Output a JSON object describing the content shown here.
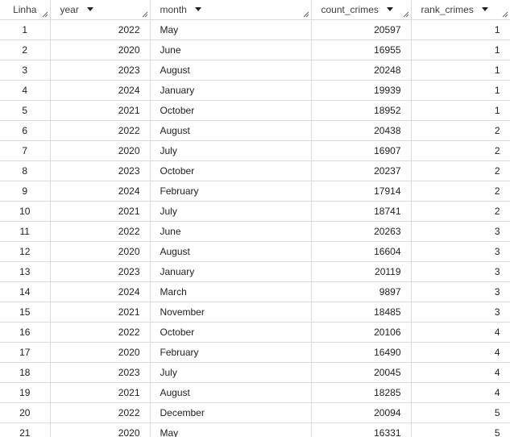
{
  "columns": [
    {
      "key": "linha",
      "label": "Linha",
      "sortable": false
    },
    {
      "key": "year",
      "label": "year",
      "sortable": true
    },
    {
      "key": "month",
      "label": "month",
      "sortable": true
    },
    {
      "key": "count_crimes",
      "label": "count_crimes",
      "sortable": true
    },
    {
      "key": "rank_crimes",
      "label": "rank_crimes",
      "sortable": true
    }
  ],
  "rows": [
    {
      "linha": "1",
      "year": "2022",
      "month": "May",
      "count_crimes": "20597",
      "rank_crimes": "1"
    },
    {
      "linha": "2",
      "year": "2020",
      "month": "June",
      "count_crimes": "16955",
      "rank_crimes": "1"
    },
    {
      "linha": "3",
      "year": "2023",
      "month": "August",
      "count_crimes": "20248",
      "rank_crimes": "1"
    },
    {
      "linha": "4",
      "year": "2024",
      "month": "January",
      "count_crimes": "19939",
      "rank_crimes": "1"
    },
    {
      "linha": "5",
      "year": "2021",
      "month": "October",
      "count_crimes": "18952",
      "rank_crimes": "1"
    },
    {
      "linha": "6",
      "year": "2022",
      "month": "August",
      "count_crimes": "20438",
      "rank_crimes": "2"
    },
    {
      "linha": "7",
      "year": "2020",
      "month": "July",
      "count_crimes": "16907",
      "rank_crimes": "2"
    },
    {
      "linha": "8",
      "year": "2023",
      "month": "October",
      "count_crimes": "20237",
      "rank_crimes": "2"
    },
    {
      "linha": "9",
      "year": "2024",
      "month": "February",
      "count_crimes": "17914",
      "rank_crimes": "2"
    },
    {
      "linha": "10",
      "year": "2021",
      "month": "July",
      "count_crimes": "18741",
      "rank_crimes": "2"
    },
    {
      "linha": "11",
      "year": "2022",
      "month": "June",
      "count_crimes": "20263",
      "rank_crimes": "3"
    },
    {
      "linha": "12",
      "year": "2020",
      "month": "August",
      "count_crimes": "16604",
      "rank_crimes": "3"
    },
    {
      "linha": "13",
      "year": "2023",
      "month": "January",
      "count_crimes": "20119",
      "rank_crimes": "3"
    },
    {
      "linha": "14",
      "year": "2024",
      "month": "March",
      "count_crimes": "9897",
      "rank_crimes": "3"
    },
    {
      "linha": "15",
      "year": "2021",
      "month": "November",
      "count_crimes": "18485",
      "rank_crimes": "3"
    },
    {
      "linha": "16",
      "year": "2022",
      "month": "October",
      "count_crimes": "20106",
      "rank_crimes": "4"
    },
    {
      "linha": "17",
      "year": "2020",
      "month": "February",
      "count_crimes": "16490",
      "rank_crimes": "4"
    },
    {
      "linha": "18",
      "year": "2023",
      "month": "July",
      "count_crimes": "20045",
      "rank_crimes": "4"
    },
    {
      "linha": "19",
      "year": "2021",
      "month": "August",
      "count_crimes": "18285",
      "rank_crimes": "4"
    },
    {
      "linha": "20",
      "year": "2022",
      "month": "December",
      "count_crimes": "20094",
      "rank_crimes": "5"
    },
    {
      "linha": "21",
      "year": "2020",
      "month": "May",
      "count_crimes": "16331",
      "rank_crimes": "5"
    }
  ]
}
